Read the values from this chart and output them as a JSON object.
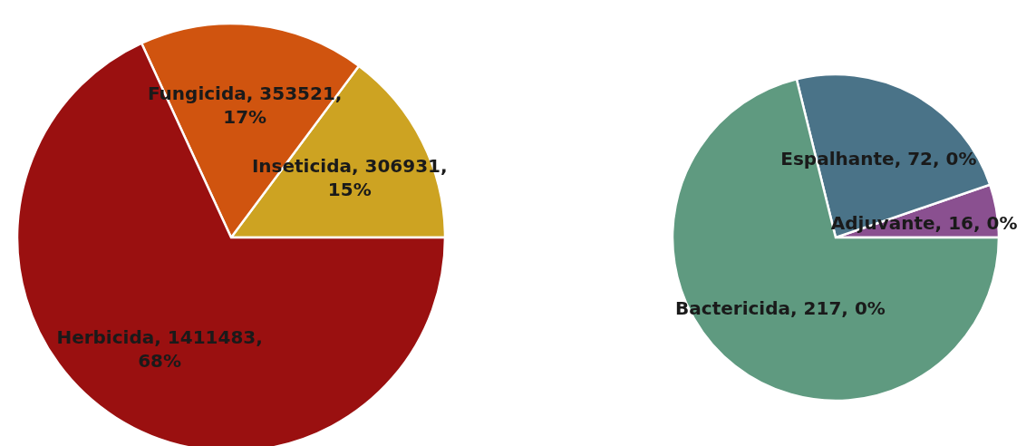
{
  "chart_data": [
    {
      "type": "pie",
      "categories": [
        "Inseticida",
        "Fungicida",
        "Herbicida"
      ],
      "values": [
        306931,
        353521,
        1411483
      ],
      "colors": [
        "#cda322",
        "#d0540f",
        "#9a1010"
      ],
      "value_labels": [
        ", 306931, 15%",
        ", 353521, 17%",
        ", 1411483, 68%"
      ]
    },
    {
      "type": "pie",
      "categories": [
        "Adjuvante",
        "Espalhante",
        "Bactericida"
      ],
      "values": [
        16,
        72,
        217
      ],
      "colors": [
        "#8a5090",
        "#4a7388",
        "#5f9a80"
      ],
      "value_labels": [
        ", 16, 0%",
        ", 72, 0%",
        ", 217, 0%"
      ]
    }
  ]
}
